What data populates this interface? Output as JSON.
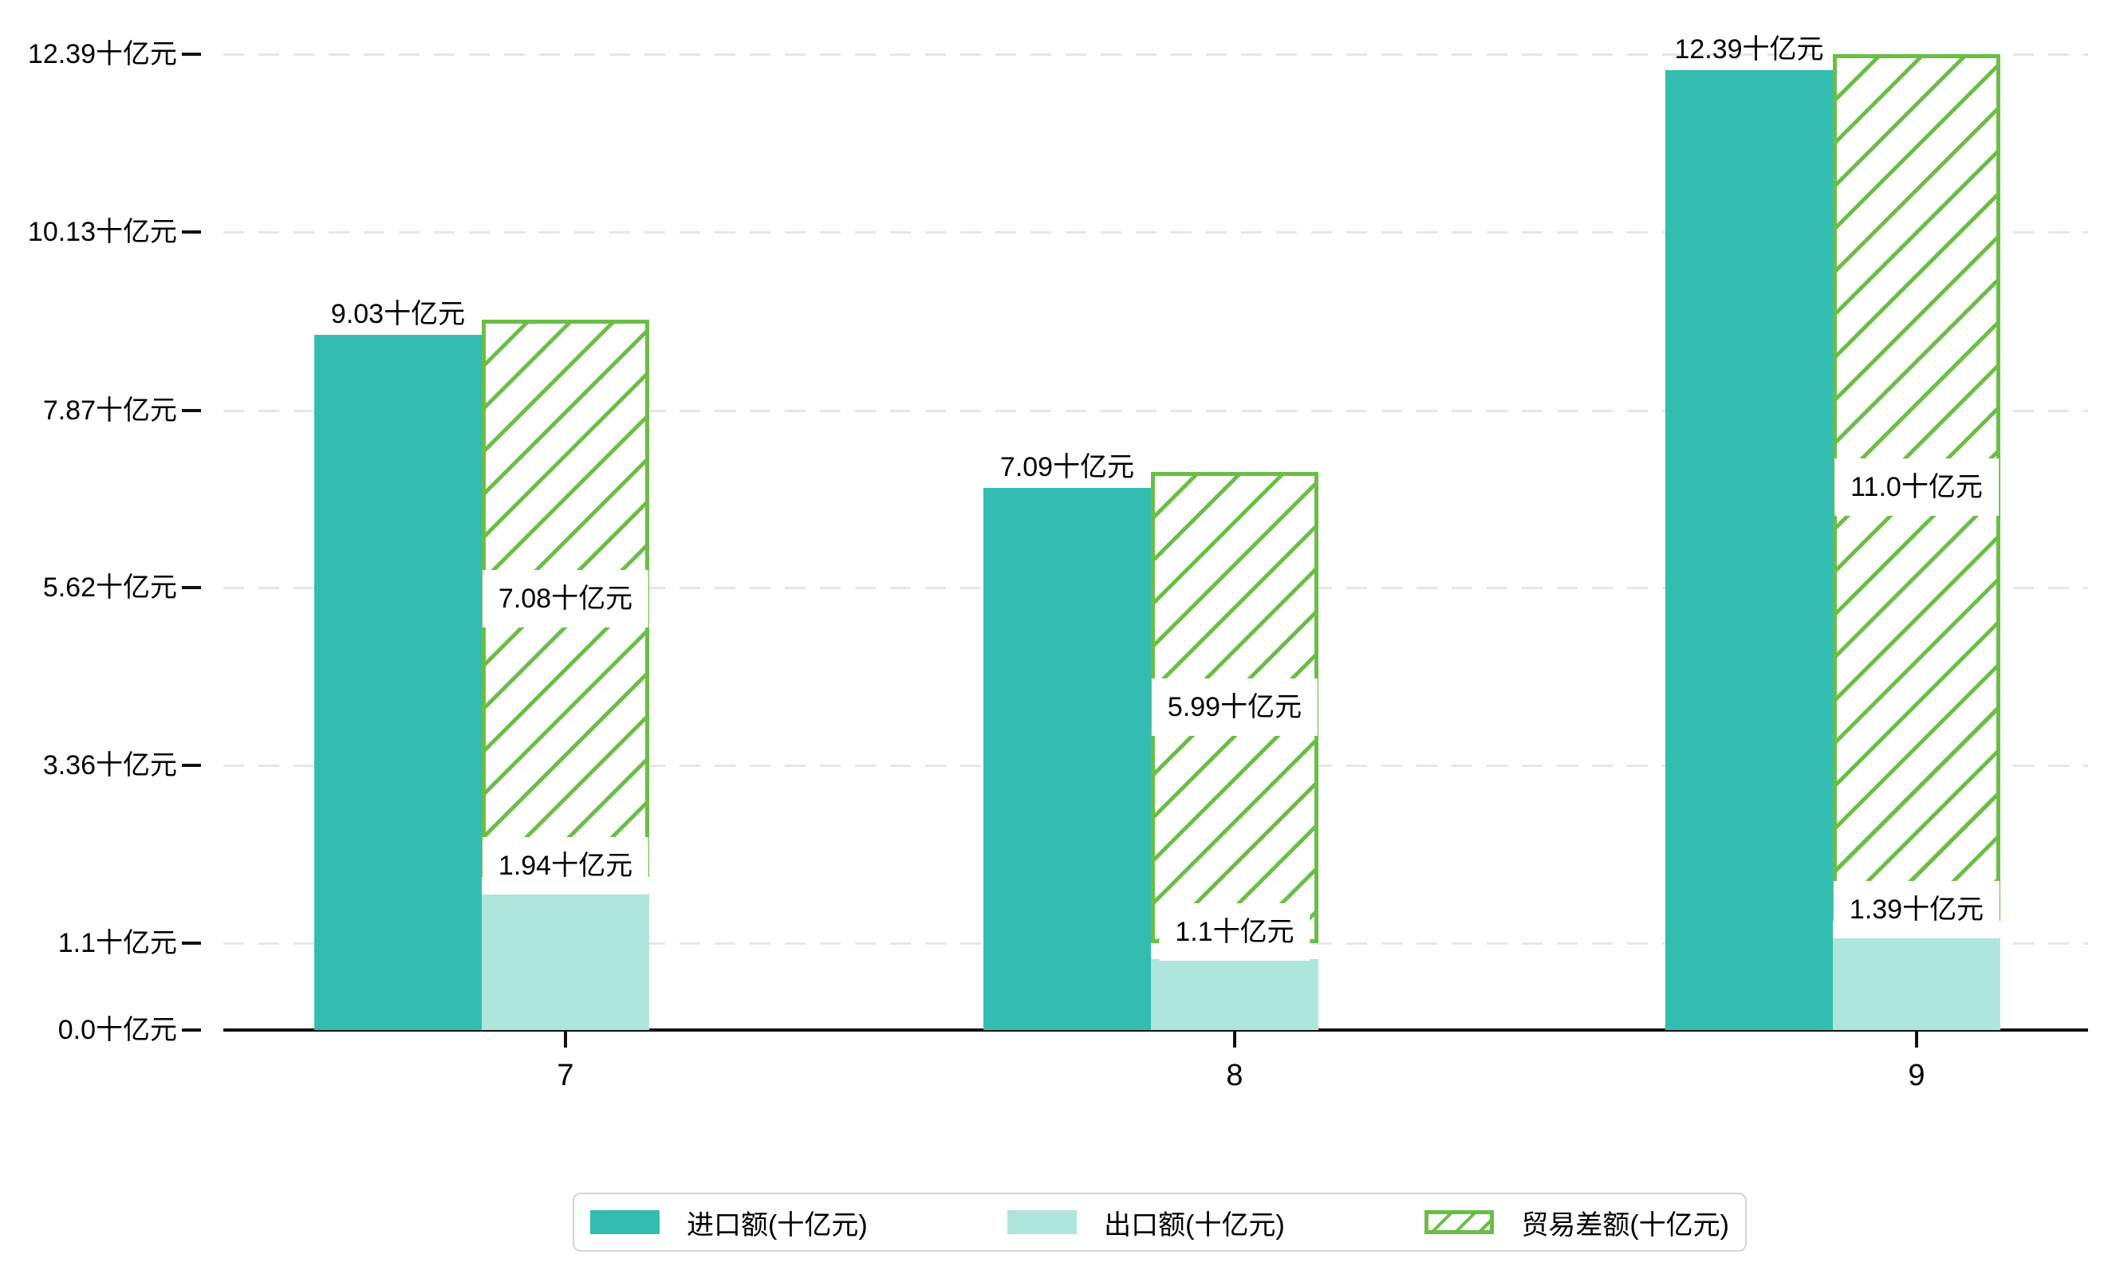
{
  "chart_data": {
    "type": "bar",
    "title": "",
    "categories": [
      "7",
      "8",
      "9"
    ],
    "unit": "十亿元",
    "series": [
      {
        "name": "进口额(十亿元)",
        "values": [
          9.03,
          7.09,
          12.39
        ],
        "labels": [
          "9.03十亿元",
          "7.09十亿元",
          "12.39十亿元"
        ],
        "color": "#33bdb1",
        "style": "solid"
      },
      {
        "name": "出口额(十亿元)",
        "values": [
          1.94,
          1.1,
          1.39
        ],
        "labels": [
          "1.94十亿元",
          "1.1十亿元",
          "1.39十亿元"
        ],
        "color": "#aee6dc",
        "style": "solid"
      },
      {
        "name": "贸易差额(十亿元)",
        "values": [
          7.08,
          5.99,
          11.0
        ],
        "labels": [
          "7.08十亿元",
          "5.99十亿元",
          "11.0十亿元"
        ],
        "color": "#6abe45",
        "style": "hatched",
        "stacked_on_series": "出口额(十亿元)"
      }
    ],
    "yticks": {
      "values": [
        0,
        1.1,
        3.36,
        5.62,
        7.87,
        10.13,
        12.39
      ],
      "labels": [
        "0.0十亿元",
        "1.1十亿元",
        "3.36十亿元",
        "5.62十亿元",
        "7.87十亿元",
        "10.13十亿元",
        "12.39十亿元"
      ]
    },
    "ylim": [
      0,
      12.39
    ],
    "grid": "horizontal-dashed",
    "legend_position": "bottom",
    "colors": {
      "import_bar": "#33bdb1",
      "export_bar": "#aee6dc",
      "balance_hatch": "#6abe45",
      "axis": "#111111",
      "gridline": "#e7e7e7",
      "text": "#000000",
      "legend_border": "#d5d5d5"
    }
  }
}
